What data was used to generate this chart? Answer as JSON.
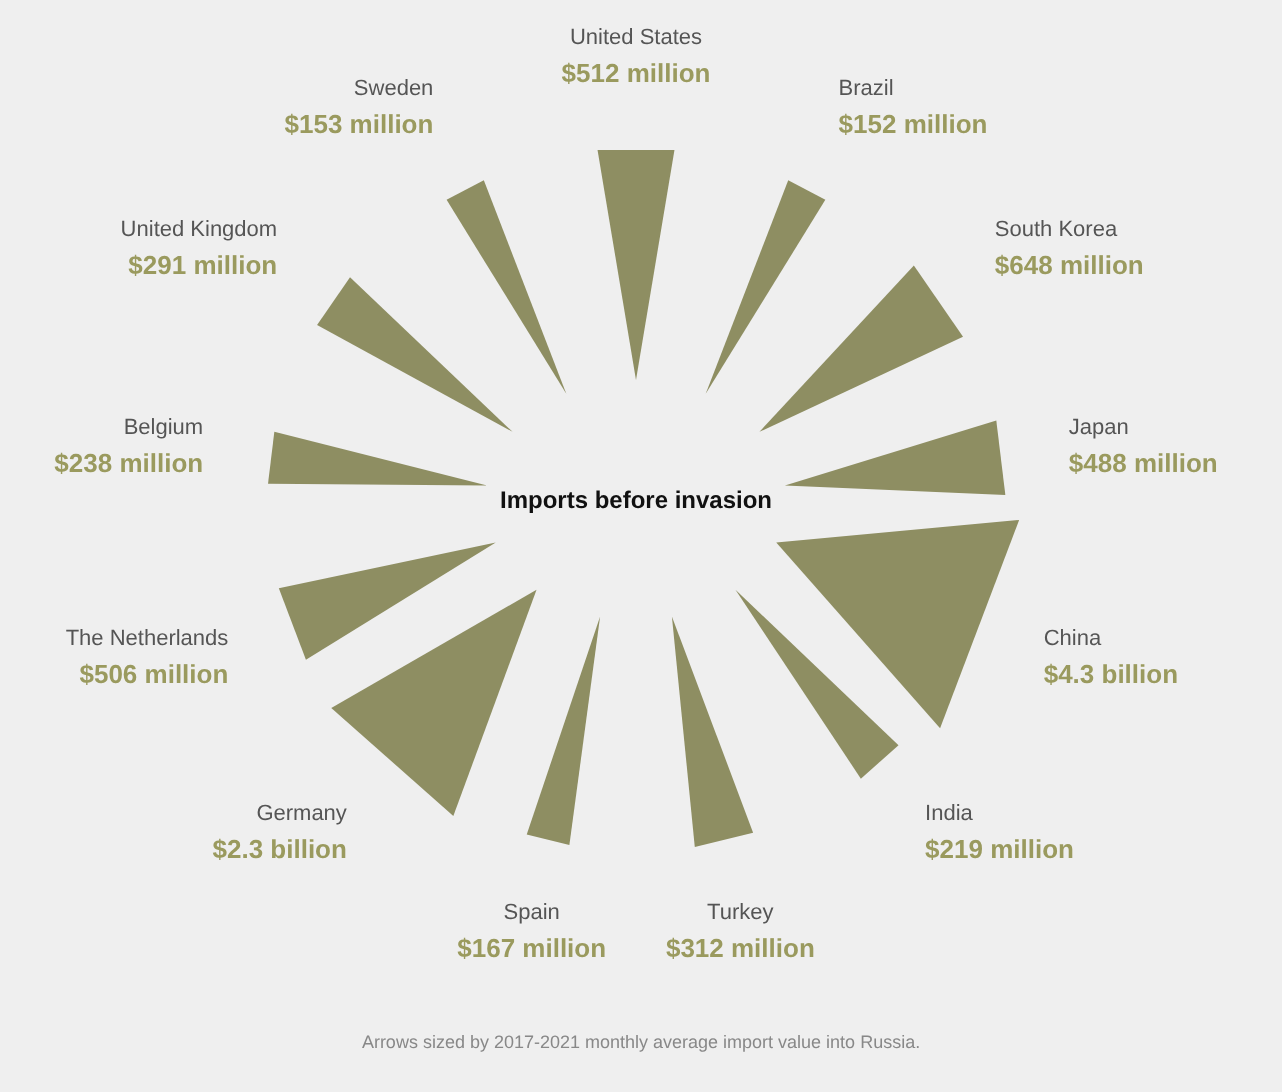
{
  "chart_data": {
    "type": "other",
    "title": "Imports before invasion",
    "categories": [
      "United States",
      "Brazil",
      "South Korea",
      "Japan",
      "China",
      "India",
      "Turkey",
      "Spain",
      "Germany",
      "The Netherlands",
      "Belgium",
      "United Kingdom",
      "Sweden"
    ],
    "values": [
      512000000,
      152000000,
      648000000,
      488000000,
      4300000000,
      219000000,
      312000000,
      167000000,
      2300000000,
      506000000,
      238000000,
      291000000,
      153000000
    ],
    "value_labels": [
      "$512 million",
      "$152 million",
      "$648 million",
      "$488 million",
      "$4.3 billion",
      "$219 million",
      "$312 million",
      "$167 million",
      "$2.3 billion",
      "$506 million",
      "$238 million",
      "$291 million",
      "$153 million"
    ],
    "color": "#8e8e62",
    "annotations": [
      "Arrows sized by 2017-2021 monthly average import value into Russia."
    ]
  }
}
